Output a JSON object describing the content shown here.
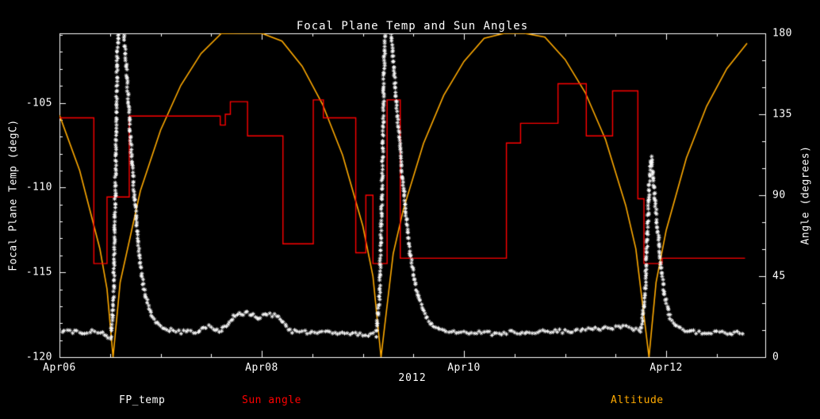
{
  "legend": [
    {
      "label": "FP_temp",
      "color": "#ffffff"
    },
    {
      "label": "Sun angle",
      "color": "#ff0000"
    },
    {
      "label": "Altitude",
      "color": "#ffaa00"
    }
  ],
  "colors": {
    "background": "#000000",
    "axis": "#ffffff"
  },
  "chart_data": {
    "type": "line",
    "title": "Focal Plane Temp and Sun Angles",
    "x_axis": {
      "year_label": "2012",
      "range_days": [
        0,
        6.98
      ],
      "ticks": [
        {
          "pos": 0,
          "label": "Apr06"
        },
        {
          "pos": 2,
          "label": "Apr08"
        },
        {
          "pos": 4,
          "label": "Apr10"
        },
        {
          "pos": 6,
          "label": "Apr12"
        }
      ],
      "minor_step": 0.5
    },
    "y_left": {
      "label": "Focal Plane Temp (degC)",
      "range": [
        -120,
        -100.9
      ],
      "ticks": [
        {
          "v": -105,
          "label": "-105"
        },
        {
          "v": -110,
          "label": "-110"
        },
        {
          "v": -115,
          "label": "-115"
        },
        {
          "v": -120,
          "label": "-120"
        }
      ],
      "minor_step": 1
    },
    "y_right": {
      "label": "Angle (degrees)",
      "range": [
        0,
        180
      ],
      "ticks": [
        {
          "v": 180,
          "label": "180"
        },
        {
          "v": 135,
          "label": "135"
        },
        {
          "v": 90,
          "label": "90"
        },
        {
          "v": 45,
          "label": "45"
        },
        {
          "v": 0,
          "label": "0"
        }
      ],
      "minor_step": 15
    },
    "series": [
      {
        "name": "FP_temp",
        "type": "scatter-asterisk",
        "axis": "left",
        "color": "#ffffff",
        "points": [
          [
            0.0,
            -118.45
          ],
          [
            0.15,
            -118.5
          ],
          [
            0.3,
            -118.5
          ],
          [
            0.4,
            -118.55
          ],
          [
            0.46,
            -118.75
          ],
          [
            0.51,
            -118.85
          ],
          [
            0.535,
            -116.5
          ],
          [
            0.555,
            -109.0
          ],
          [
            0.572,
            -102.0
          ],
          [
            0.585,
            -100.4
          ],
          [
            0.625,
            -100.3
          ],
          [
            0.655,
            -102.2
          ],
          [
            0.685,
            -105.2
          ],
          [
            0.715,
            -108.2
          ],
          [
            0.745,
            -110.8
          ],
          [
            0.775,
            -113.0
          ],
          [
            0.81,
            -115.0
          ],
          [
            0.85,
            -116.4
          ],
          [
            0.91,
            -117.5
          ],
          [
            0.98,
            -118.1
          ],
          [
            1.08,
            -118.4
          ],
          [
            1.2,
            -118.5
          ],
          [
            1.35,
            -118.5
          ],
          [
            1.45,
            -118.2
          ],
          [
            1.52,
            -118.3
          ],
          [
            1.6,
            -118.45
          ],
          [
            1.68,
            -118.0
          ],
          [
            1.74,
            -117.5
          ],
          [
            1.82,
            -117.4
          ],
          [
            1.9,
            -117.45
          ],
          [
            1.97,
            -117.7
          ],
          [
            2.03,
            -117.5
          ],
          [
            2.1,
            -117.5
          ],
          [
            2.17,
            -117.65
          ],
          [
            2.23,
            -118.1
          ],
          [
            2.3,
            -118.5
          ],
          [
            2.55,
            -118.55
          ],
          [
            2.8,
            -118.6
          ],
          [
            3.0,
            -118.65
          ],
          [
            3.13,
            -118.7
          ],
          [
            3.165,
            -116.5
          ],
          [
            3.19,
            -110.0
          ],
          [
            3.21,
            -103.0
          ],
          [
            3.225,
            -100.4
          ],
          [
            3.27,
            -100.3
          ],
          [
            3.3,
            -102.5
          ],
          [
            3.34,
            -105.5
          ],
          [
            3.38,
            -108.5
          ],
          [
            3.42,
            -111.2
          ],
          [
            3.465,
            -113.8
          ],
          [
            3.52,
            -115.8
          ],
          [
            3.59,
            -117.2
          ],
          [
            3.68,
            -118.1
          ],
          [
            3.8,
            -118.5
          ],
          [
            4.0,
            -118.55
          ],
          [
            4.3,
            -118.6
          ],
          [
            4.6,
            -118.5
          ],
          [
            4.9,
            -118.5
          ],
          [
            5.15,
            -118.4
          ],
          [
            5.35,
            -118.3
          ],
          [
            5.55,
            -118.2
          ],
          [
            5.68,
            -118.3
          ],
          [
            5.75,
            -118.5
          ],
          [
            5.79,
            -116.5
          ],
          [
            5.815,
            -112.5
          ],
          [
            5.84,
            -108.8
          ],
          [
            5.855,
            -108.2
          ],
          [
            5.875,
            -109.8
          ],
          [
            5.905,
            -111.8
          ],
          [
            5.94,
            -114.2
          ],
          [
            5.985,
            -116.4
          ],
          [
            6.04,
            -117.7
          ],
          [
            6.12,
            -118.3
          ],
          [
            6.25,
            -118.5
          ],
          [
            6.5,
            -118.55
          ],
          [
            6.78,
            -118.55
          ]
        ]
      },
      {
        "name": "Sun angle",
        "type": "step",
        "axis": "right",
        "color": "#ff0000",
        "points": [
          [
            0.0,
            133
          ],
          [
            0.34,
            52
          ],
          [
            0.47,
            89
          ],
          [
            0.69,
            134
          ],
          [
            1.59,
            129
          ],
          [
            1.64,
            135
          ],
          [
            1.69,
            142
          ],
          [
            1.86,
            123
          ],
          [
            2.21,
            63
          ],
          [
            2.51,
            143
          ],
          [
            2.61,
            133
          ],
          [
            2.93,
            58
          ],
          [
            3.03,
            90
          ],
          [
            3.1,
            52
          ],
          [
            3.24,
            143
          ],
          [
            3.37,
            55
          ],
          [
            4.42,
            119
          ],
          [
            4.56,
            130
          ],
          [
            4.93,
            152
          ],
          [
            5.21,
            123
          ],
          [
            5.47,
            148
          ],
          [
            5.72,
            88
          ],
          [
            5.78,
            52
          ],
          [
            5.96,
            55
          ],
          [
            6.78,
            55
          ]
        ]
      },
      {
        "name": "Altitude",
        "type": "line",
        "axis": "right",
        "color": "#ffaa00",
        "clip_max": 180,
        "points": [
          [
            0.0,
            134.5
          ],
          [
            0.2,
            103.7
          ],
          [
            0.4,
            60.1
          ],
          [
            0.47,
            37.9
          ],
          [
            0.53,
            0
          ],
          [
            0.6,
            41.5
          ],
          [
            0.8,
            92.4
          ],
          [
            1.0,
            126.2
          ],
          [
            1.2,
            151.1
          ],
          [
            1.4,
            168.8
          ],
          [
            1.6,
            179.9
          ],
          [
            1.8,
            184.8
          ],
          [
            1.86,
            185.0
          ],
          [
            2.0,
            183.4
          ],
          [
            2.2,
            175.7
          ],
          [
            2.4,
            161.7
          ],
          [
            2.6,
            140.7
          ],
          [
            2.8,
            112.3
          ],
          [
            3.0,
            72.9
          ],
          [
            3.1,
            45.0
          ],
          [
            3.18,
            0
          ],
          [
            3.3,
            57.4
          ],
          [
            3.4,
            81.9
          ],
          [
            3.6,
            118.8
          ],
          [
            3.8,
            145.5
          ],
          [
            4.0,
            164.4
          ],
          [
            4.2,
            177.3
          ],
          [
            4.4,
            184.1
          ],
          [
            4.5,
            185.0
          ],
          [
            4.6,
            184.3
          ],
          [
            4.8,
            177.9
          ],
          [
            5.0,
            165.5
          ],
          [
            5.2,
            147.0
          ],
          [
            5.4,
            121.0
          ],
          [
            5.6,
            84.3
          ],
          [
            5.7,
            60.2
          ],
          [
            5.83,
            0
          ],
          [
            5.9,
            41.5
          ],
          [
            6.0,
            70.5
          ],
          [
            6.2,
            110.7
          ],
          [
            6.4,
            139.5
          ],
          [
            6.6,
            160.4
          ],
          [
            6.8,
            174.5
          ]
        ]
      }
    ]
  }
}
